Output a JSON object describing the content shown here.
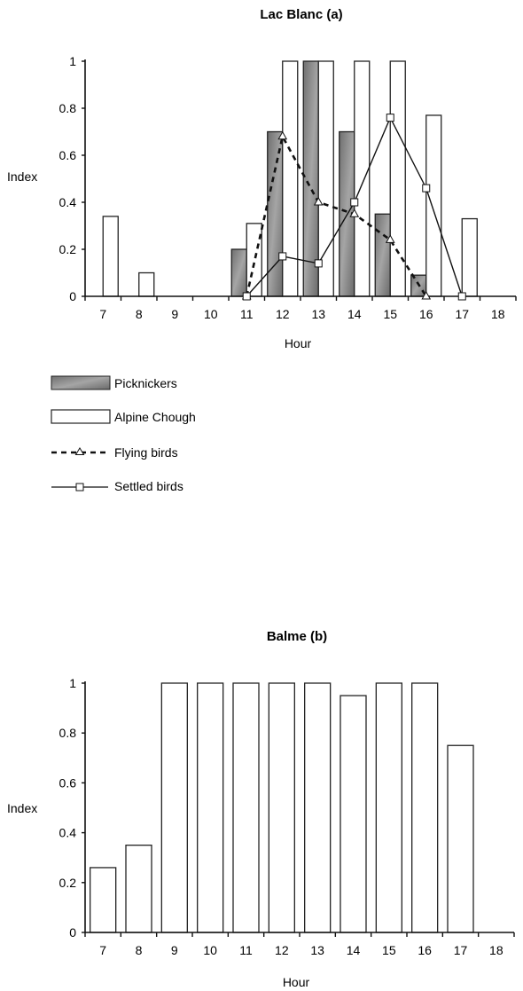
{
  "chart_data": [
    {
      "type": "bar",
      "title": "Lac Blanc (a)",
      "xlabel": "Hour",
      "ylabel": "Index",
      "categories": [
        "7",
        "8",
        "9",
        "10",
        "11",
        "12",
        "13",
        "14",
        "15",
        "16",
        "17",
        "18"
      ],
      "xticks": [
        "7",
        "8",
        "9",
        "10",
        "11",
        "12",
        "13",
        "14",
        "15",
        "16",
        "17",
        "18"
      ],
      "yticks": [
        "0",
        "0.2",
        "0.4",
        "0.6",
        "0.8",
        "1"
      ],
      "ylim": [
        0,
        1
      ],
      "grid": false,
      "legend_position": "below-left",
      "series": [
        {
          "name": "Picknickers",
          "kind": "bar",
          "color": "#8c8c8c",
          "values": [
            null,
            null,
            null,
            null,
            0.2,
            0.7,
            1.0,
            0.7,
            0.35,
            0.09,
            null,
            null
          ]
        },
        {
          "name": "Alpine Chough",
          "kind": "bar",
          "color": "#ffffff",
          "values": [
            0.34,
            0.1,
            null,
            null,
            0.31,
            1.0,
            1.0,
            1.0,
            1.0,
            0.77,
            0.33,
            null
          ]
        },
        {
          "name": "Flying birds",
          "kind": "line",
          "style": "dashed",
          "marker": "triangle",
          "values": [
            null,
            null,
            null,
            null,
            0.0,
            0.68,
            0.4,
            0.35,
            0.24,
            0.0,
            null,
            null
          ]
        },
        {
          "name": "Settled birds",
          "kind": "line",
          "style": "solid",
          "marker": "square",
          "values": [
            null,
            null,
            null,
            null,
            0.0,
            0.17,
            0.14,
            0.4,
            0.76,
            0.46,
            0.0,
            null
          ]
        }
      ]
    },
    {
      "type": "bar",
      "title": "Balme (b)",
      "xlabel": "Hour",
      "ylabel": "Index",
      "categories": [
        "7",
        "8",
        "9",
        "10",
        "11",
        "12",
        "13",
        "14",
        "15",
        "16",
        "17",
        "18"
      ],
      "xticks": [
        "7",
        "8",
        "9",
        "10",
        "11",
        "12",
        "13",
        "14",
        "15",
        "16",
        "17",
        "18"
      ],
      "yticks": [
        "0",
        "0.2",
        "0.4",
        "0.6",
        "0.8",
        "1"
      ],
      "ylim": [
        0,
        1
      ],
      "grid": false,
      "series": [
        {
          "kind": "bar",
          "color": "#ffffff",
          "values": [
            0.26,
            0.35,
            1.0,
            1.0,
            1.0,
            1.0,
            1.0,
            0.95,
            1.0,
            1.0,
            0.75,
            null
          ]
        }
      ]
    }
  ]
}
